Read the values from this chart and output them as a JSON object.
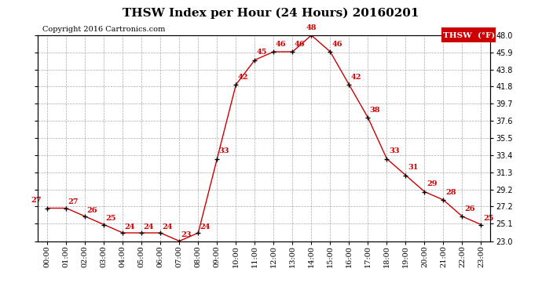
{
  "title": "THSW Index per Hour (24 Hours) 20160201",
  "copyright": "Copyright 2016 Cartronics.com",
  "legend_label": "THSW  (°F)",
  "hours": [
    "00:00",
    "01:00",
    "02:00",
    "03:00",
    "04:00",
    "05:00",
    "06:00",
    "07:00",
    "08:00",
    "09:00",
    "10:00",
    "11:00",
    "12:00",
    "13:00",
    "14:00",
    "15:00",
    "16:00",
    "17:00",
    "18:00",
    "19:00",
    "20:00",
    "21:00",
    "22:00",
    "23:00"
  ],
  "values": [
    27,
    27,
    26,
    25,
    24,
    24,
    24,
    23,
    24,
    33,
    42,
    45,
    46,
    46,
    48,
    46,
    42,
    38,
    33,
    31,
    29,
    28,
    26,
    25
  ],
  "ylim": [
    23.0,
    48.0
  ],
  "yticks": [
    23.0,
    25.1,
    27.2,
    29.2,
    31.3,
    33.4,
    35.5,
    37.6,
    39.7,
    41.8,
    43.8,
    45.9,
    48.0
  ],
  "line_color": "#cc0000",
  "marker_color": "#000000",
  "label_color": "#cc0000",
  "background_color": "#ffffff",
  "grid_color": "#aaaaaa",
  "title_fontsize": 11,
  "copyright_fontsize": 7,
  "label_fontsize": 7,
  "tick_fontsize": 7,
  "legend_bg": "#cc0000",
  "legend_fg": "#ffffff"
}
